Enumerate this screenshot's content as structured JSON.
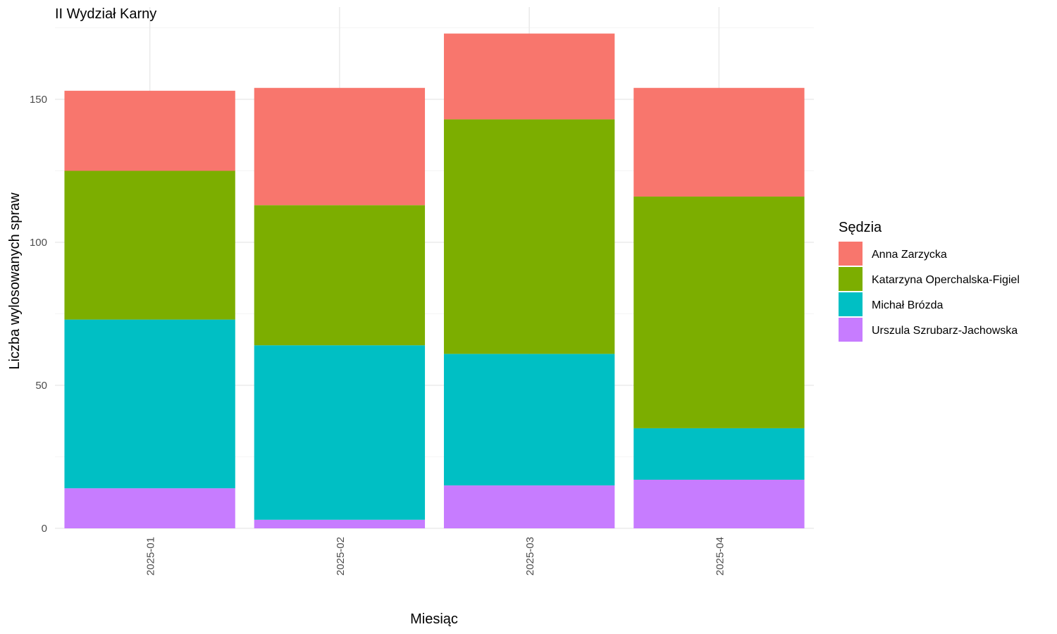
{
  "chart_data": {
    "type": "bar",
    "stacked": true,
    "title": "II Wydział Karny",
    "xlabel": "Miesiąc",
    "ylabel": "Liczba wylosowanych spraw",
    "categories": [
      "2025-01",
      "2025-02",
      "2025-03",
      "2025-04"
    ],
    "ylim": [
      0,
      180
    ],
    "yticks": [
      0,
      50,
      100,
      150
    ],
    "grid": true,
    "legend": {
      "title": "Sędzia",
      "position": "right"
    },
    "series": [
      {
        "name": "Urszula Szrubarz-Jachowska",
        "color": "#C77CFF",
        "values": [
          14,
          3,
          15,
          17
        ]
      },
      {
        "name": "Michał Brózda",
        "color": "#00BFC4",
        "values": [
          59,
          61,
          46,
          18
        ]
      },
      {
        "name": "Katarzyna Operchalska-Figiel",
        "color": "#7CAE00",
        "values": [
          52,
          49,
          82,
          81
        ]
      },
      {
        "name": "Anna Zarzycka",
        "color": "#F8766D",
        "values": [
          28,
          41,
          30,
          38
        ]
      }
    ],
    "legend_order": [
      "Anna Zarzycka",
      "Katarzyna Operchalska-Figiel",
      "Michał Brózda",
      "Urszula Szrubarz-Jachowska"
    ]
  }
}
